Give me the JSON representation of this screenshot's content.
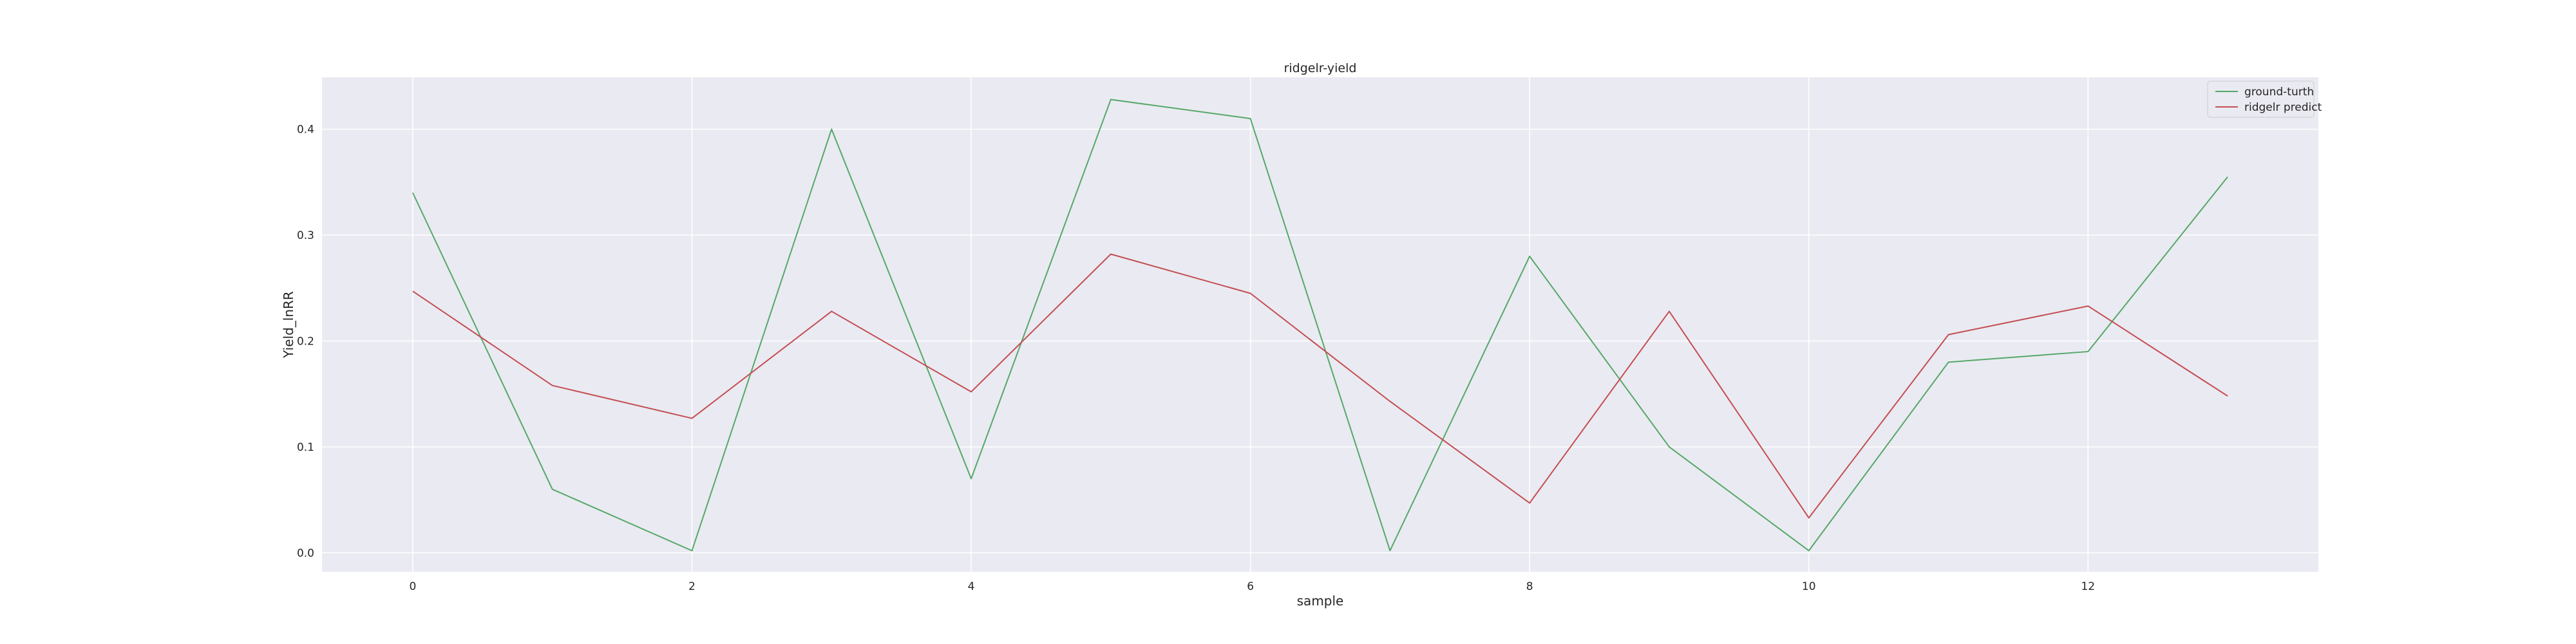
{
  "chart_data": {
    "type": "line",
    "title": "ridgelr-yield",
    "xlabel": "sample",
    "ylabel": "Yield_lnRR",
    "x": [
      0,
      1,
      2,
      3,
      4,
      5,
      6,
      7,
      8,
      9,
      10,
      11,
      12,
      13
    ],
    "xlim": [
      -0.65,
      13.65
    ],
    "ylim": [
      -0.018,
      0.449
    ],
    "xticks": [
      "0",
      "2",
      "4",
      "6",
      "8",
      "10",
      "12"
    ],
    "xtick_values": [
      0,
      2,
      4,
      6,
      8,
      10,
      12
    ],
    "yticks": [
      "0.0",
      "0.1",
      "0.2",
      "0.3",
      "0.4"
    ],
    "ytick_values": [
      0.0,
      0.1,
      0.2,
      0.3,
      0.4
    ],
    "grid": true,
    "legend_position": "top-right",
    "series": [
      {
        "name": "ground-turth",
        "color": "#55a868",
        "values": [
          0.34,
          0.06,
          0.002,
          0.4,
          0.07,
          0.428,
          0.41,
          0.002,
          0.28,
          0.1,
          0.002,
          0.18,
          0.19,
          0.355
        ]
      },
      {
        "name": "ridgelr predict",
        "color": "#c44e52",
        "values": [
          0.247,
          0.158,
          0.127,
          0.228,
          0.152,
          0.282,
          0.245,
          0.143,
          0.047,
          0.228,
          0.033,
          0.206,
          0.233,
          0.148
        ]
      }
    ]
  }
}
